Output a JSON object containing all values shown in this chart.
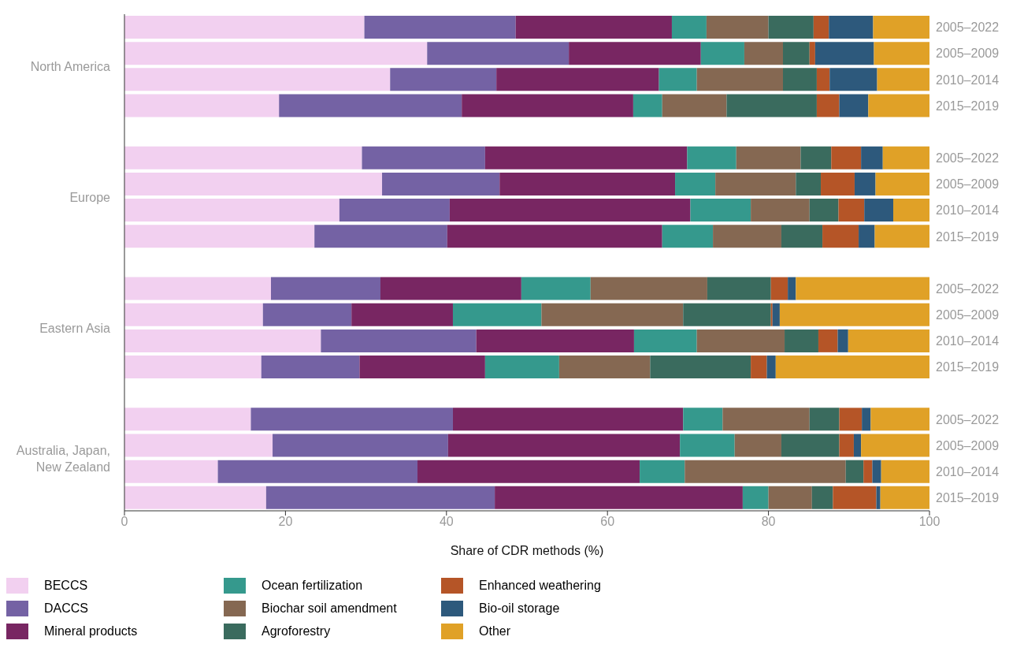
{
  "chart_data": {
    "type": "bar",
    "orientation": "horizontal",
    "stacked": true,
    "xlabel": "Share of CDR methods (%)",
    "xlim": [
      0,
      100
    ],
    "xticks": [
      0,
      20,
      40,
      60,
      80,
      100
    ],
    "legend": "bottom",
    "annotations": [
      "North America",
      "Europe",
      "Eastern Asia",
      "Australia, Japan, New Zealand"
    ],
    "categories": [
      "2005–2022",
      "2005–2009",
      "2010–2014",
      "2015–2019",
      null,
      "2005–2022",
      "2005–2009",
      "2010–2014",
      "2015–2019",
      null,
      "2005–2022",
      "2005–2009",
      "2010–2014",
      "2015–2019",
      null,
      "2005–2022",
      "2005–2009",
      "2010–2014",
      "2015–2019"
    ],
    "series": [
      {
        "name": "BECCS",
        "color": "#f2d0f0",
        "values": [
          29.8,
          37.6,
          33.0,
          19.2,
          null,
          29.5,
          32.0,
          26.7,
          23.6,
          null,
          18.2,
          17.2,
          24.4,
          17.0,
          null,
          15.7,
          18.4,
          11.6,
          17.6
        ]
      },
      {
        "name": "DACCS",
        "color": "#7462a4",
        "values": [
          18.8,
          17.6,
          13.2,
          22.7,
          null,
          15.3,
          14.6,
          13.7,
          16.5,
          null,
          13.6,
          11.0,
          19.3,
          12.2,
          null,
          25.1,
          21.8,
          24.8,
          28.4
        ]
      },
      {
        "name": "Mineral products",
        "color": "#782662",
        "values": [
          19.4,
          16.4,
          20.2,
          21.3,
          null,
          25.1,
          21.8,
          29.9,
          26.7,
          null,
          17.5,
          12.6,
          19.6,
          15.6,
          null,
          28.6,
          28.8,
          27.6,
          30.8
        ]
      },
      {
        "name": "Ocean fertilization",
        "color": "#35998d",
        "values": [
          4.3,
          5.4,
          4.7,
          3.6,
          null,
          6.1,
          5.0,
          7.5,
          6.3,
          null,
          8.6,
          11.0,
          7.8,
          9.2,
          null,
          4.9,
          6.8,
          5.6,
          3.2
        ]
      },
      {
        "name": "Biochar soil amendment",
        "color": "#856852",
        "values": [
          7.7,
          4.8,
          10.7,
          8.0,
          null,
          8.0,
          10.0,
          7.3,
          8.5,
          null,
          14.5,
          17.6,
          10.9,
          11.3,
          null,
          10.8,
          5.8,
          20.0,
          5.4
        ]
      },
      {
        "name": "Agroforestry",
        "color": "#3a6b5e",
        "values": [
          5.6,
          3.3,
          4.2,
          11.2,
          null,
          3.8,
          3.1,
          3.6,
          5.1,
          null,
          7.9,
          10.9,
          4.2,
          12.5,
          null,
          3.7,
          7.2,
          2.2,
          2.6
        ]
      },
      {
        "name": "Enhanced weathering",
        "color": "#b55527",
        "values": [
          1.9,
          0.7,
          1.6,
          2.8,
          null,
          3.7,
          4.2,
          3.2,
          4.5,
          null,
          2.1,
          0.2,
          2.4,
          2.0,
          null,
          2.8,
          1.8,
          1.1,
          5.4
        ]
      },
      {
        "name": "Bio-oil storage",
        "color": "#2d597c",
        "values": [
          5.5,
          7.3,
          5.9,
          3.6,
          null,
          2.7,
          2.6,
          3.6,
          2.0,
          null,
          1.0,
          0.9,
          1.3,
          1.1,
          null,
          1.1,
          0.9,
          1.1,
          0.5
        ]
      },
      {
        "name": "Other",
        "color": "#e0a127",
        "values": [
          7.0,
          6.9,
          6.5,
          7.6,
          null,
          5.8,
          6.7,
          4.5,
          6.8,
          null,
          16.6,
          18.6,
          10.1,
          19.1,
          null,
          7.3,
          8.5,
          6.0,
          6.1
        ]
      }
    ]
  }
}
